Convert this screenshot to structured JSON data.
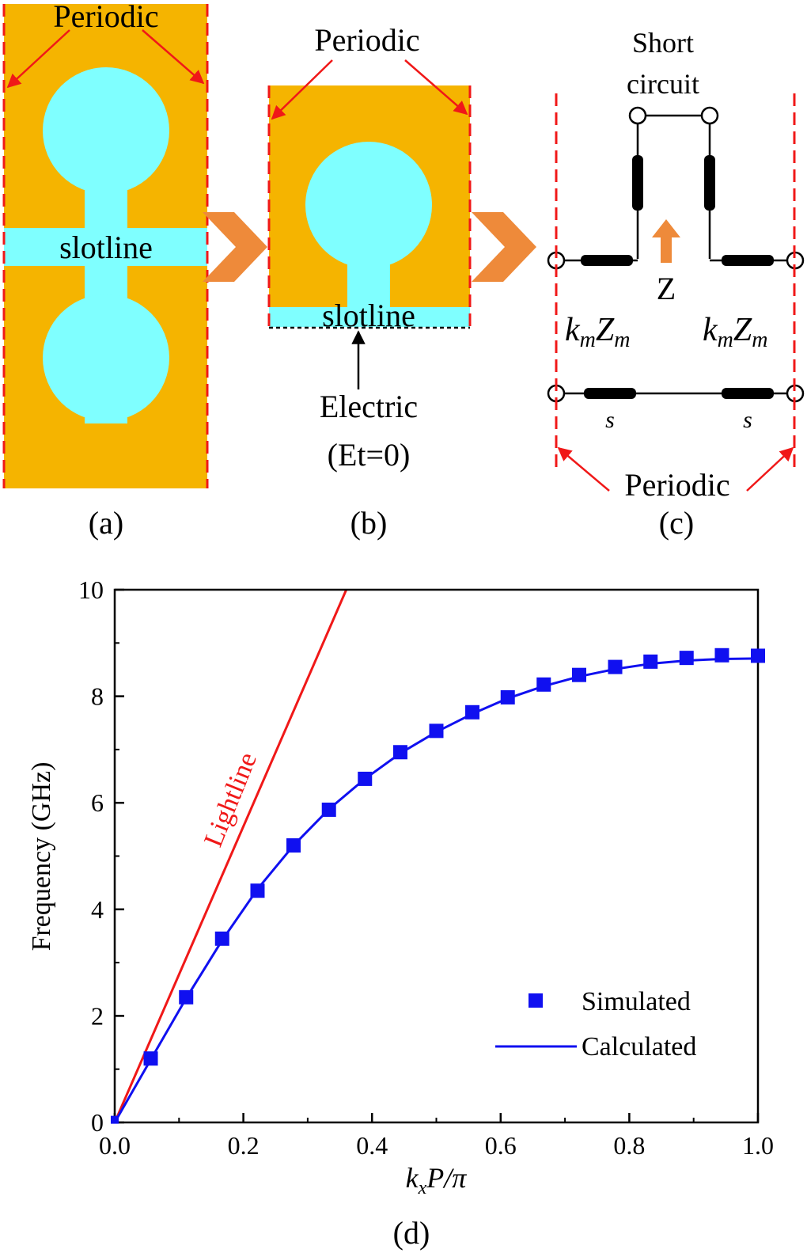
{
  "colors": {
    "metal": "#F5B400",
    "slot": "#7FFFFF",
    "boundary": "#F01818",
    "arrow": "#EE8A3A",
    "wire": "#000000",
    "simulated": "#1010F0",
    "lightline": "#F01818"
  },
  "panel_a": {
    "periodic_label": "Periodic",
    "slot_label": "slotline",
    "caption": "(a)"
  },
  "panel_b": {
    "periodic_label": "Periodic",
    "slot_label": "slotline",
    "boundary_label": "Electric",
    "boundary_condition": "(Et=0)",
    "caption": "(b)"
  },
  "panel_c": {
    "short_label_line1": "Short",
    "short_label_line2": "circuit",
    "impedance_label": "Z",
    "line_left_k": "k",
    "line_left_k_sub": "m",
    "line_left_Z": "Z",
    "line_left_Z_sub": "m",
    "line_right_k": "k",
    "line_right_k_sub": "m",
    "line_right_Z": "Z",
    "line_right_Z_sub": "m",
    "s_left": "s",
    "s_right": "s",
    "periodic_label": "Periodic",
    "caption": "(c)"
  },
  "chart_data": {
    "type": "line",
    "xlabel_k": "k",
    "xlabel_sub": "x",
    "xlabel_rest": "P/π",
    "ylabel": "Frequency (GHz)",
    "xlim": [
      0.0,
      1.0
    ],
    "ylim": [
      0,
      10
    ],
    "xticks": [
      "0.0",
      "0.2",
      "0.4",
      "0.6",
      "0.8",
      "1.0"
    ],
    "yticks": [
      "0",
      "2",
      "4",
      "6",
      "8",
      "10"
    ],
    "legend_position": "bottom-right",
    "caption": "(d)",
    "series": [
      {
        "name": "Lightline",
        "kind": "line",
        "x": [
          0.0,
          0.36
        ],
        "y": [
          0.0,
          10.0
        ]
      },
      {
        "name": "Simulated",
        "kind": "scatter",
        "x": [
          0.0,
          0.056,
          0.111,
          0.167,
          0.222,
          0.278,
          0.333,
          0.389,
          0.444,
          0.5,
          0.556,
          0.611,
          0.667,
          0.722,
          0.778,
          0.833,
          0.889,
          0.944,
          1.0
        ],
        "y": [
          0.05,
          1.2,
          2.35,
          3.45,
          4.35,
          5.2,
          5.87,
          6.45,
          6.95,
          7.35,
          7.7,
          7.98,
          8.22,
          8.4,
          8.55,
          8.65,
          8.72,
          8.77,
          8.76
        ]
      },
      {
        "name": "Calculated",
        "kind": "line",
        "x": [
          0.0,
          0.056,
          0.111,
          0.167,
          0.222,
          0.278,
          0.333,
          0.389,
          0.444,
          0.5,
          0.556,
          0.611,
          0.667,
          0.722,
          0.778,
          0.833,
          0.889,
          0.944,
          1.0
        ],
        "y": [
          0.0,
          1.18,
          2.33,
          3.42,
          4.38,
          5.2,
          5.88,
          6.45,
          6.93,
          7.33,
          7.67,
          7.96,
          8.19,
          8.37,
          8.51,
          8.61,
          8.67,
          8.7,
          8.71
        ]
      }
    ]
  }
}
